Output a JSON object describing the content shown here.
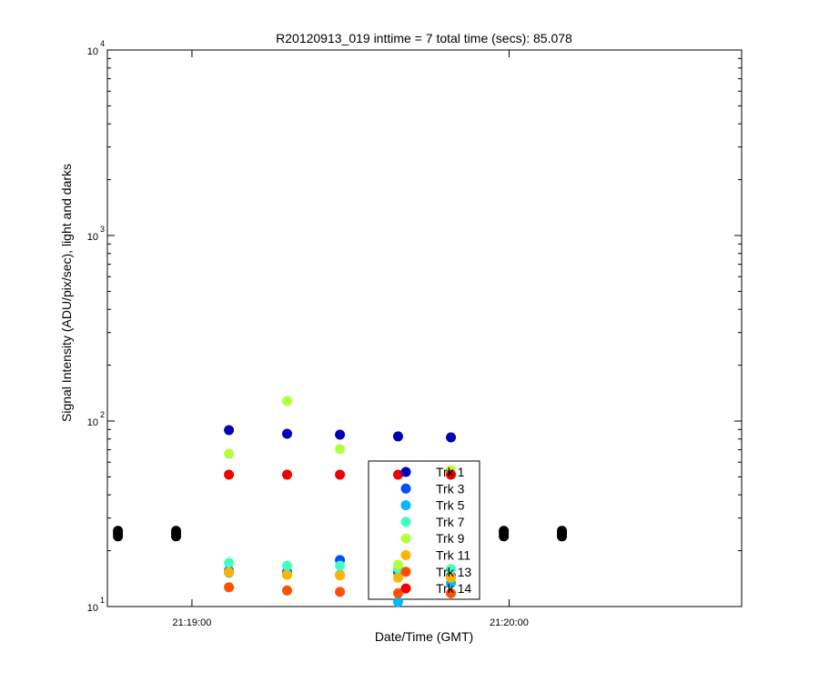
{
  "chart_data": {
    "type": "scatter",
    "title": "R20120913_019 inttime = 7 total time (secs): 85.078",
    "x_label": "Date/Time (GMT)",
    "y_label": "Signal Intensity (ADU/pix/sec), light and darks",
    "log_y": true,
    "xlim": [
      "21:18:44",
      "21:20:44"
    ],
    "xticks": [
      "21:19:00",
      "21:20:00"
    ],
    "ylim": [
      10,
      10000
    ],
    "yticks": [
      {
        "value": 10,
        "label": "10",
        "exponent": "1"
      },
      {
        "value": 100,
        "label": "10",
        "exponent": "2"
      },
      {
        "value": 1000,
        "label": "10",
        "exponent": "3"
      },
      {
        "value": 10000,
        "label": "10",
        "exponent": "4"
      }
    ],
    "legend": "bottom-center",
    "series": [
      {
        "name": "Trk 1",
        "color": "#0000b4",
        "x": [
          "21:19:07",
          "21:19:18",
          "21:19:28",
          "21:19:39",
          "21:19:49"
        ],
        "values": [
          89.3,
          85.4,
          84.4,
          82.6,
          81.6
        ]
      },
      {
        "name": "Trk 3",
        "color": "#0050ff",
        "x": [
          "21:19:07",
          "21:19:18",
          "21:19:28",
          "21:19:39",
          "21:19:49"
        ],
        "values": [
          15.6,
          15.4,
          17.8,
          15.3,
          14.6
        ]
      },
      {
        "name": "Trk 5",
        "color": "#00b8ff",
        "x": [
          "21:19:07",
          "21:19:18",
          "21:19:28",
          "21:19:39",
          "21:19:49"
        ],
        "values": [
          15.2,
          15.0,
          14.8,
          10.6,
          13.4
        ]
      },
      {
        "name": "Trk 7",
        "color": "#40ffc0",
        "x": [
          "21:19:07",
          "21:19:18",
          "21:19:28",
          "21:19:39",
          "21:19:49"
        ],
        "values": [
          17.2,
          16.6,
          16.6,
          16.0,
          15.9
        ]
      },
      {
        "name": "Trk 9",
        "color": "#b4ff40",
        "x": [
          "21:19:07",
          "21:19:18",
          "21:19:28",
          "21:19:39",
          "21:19:49"
        ],
        "values": [
          66.6,
          128.2,
          70.5,
          16.8,
          54.4
        ]
      },
      {
        "name": "Trk 11",
        "color": "#ffb400",
        "x": [
          "21:19:07",
          "21:19:18",
          "21:19:28",
          "21:19:39",
          "21:19:49"
        ],
        "values": [
          15.3,
          14.8,
          14.7,
          14.3,
          14.3
        ]
      },
      {
        "name": "Trk 13",
        "color": "#ff5000",
        "x": [
          "21:19:07",
          "21:19:18",
          "21:19:28",
          "21:19:39",
          "21:19:49"
        ],
        "values": [
          12.7,
          12.2,
          12.0,
          11.8,
          11.8
        ]
      },
      {
        "name": "Trk 14",
        "color": "#f00000",
        "x": [
          "21:19:07",
          "21:19:18",
          "21:19:28",
          "21:19:39",
          "21:19:49"
        ],
        "values": [
          51.4,
          51.4,
          51.4,
          51.4,
          51.4
        ]
      }
    ],
    "darks": {
      "color": "#000000",
      "x": [
        "21:18:46",
        "21:18:46",
        "21:18:46",
        "21:18:57",
        "21:18:57",
        "21:18:57",
        "21:19:59",
        "21:19:59",
        "21:19:59",
        "21:20:10",
        "21:20:10",
        "21:20:10"
      ],
      "values": [
        25.6,
        24.8,
        23.9,
        25.6,
        24.8,
        23.9,
        25.6,
        24.8,
        23.9,
        25.6,
        24.8,
        23.9
      ]
    }
  }
}
